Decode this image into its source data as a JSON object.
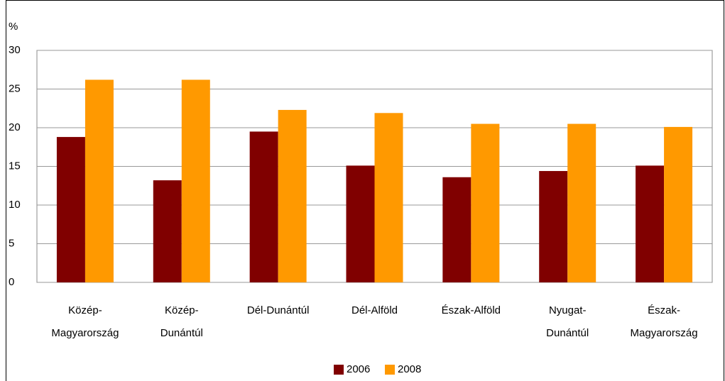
{
  "chart_data": {
    "type": "bar",
    "y_label": "%",
    "categories": [
      "Közép-Magyarország",
      "Közép-Dunántúl",
      "Dél-Dunántúl",
      "Dél-Alföld",
      "Észak-Alföld",
      "Nyugat-Dunántúl",
      "Észak-Magyarország"
    ],
    "series": [
      {
        "name": "2006",
        "color": "#800000",
        "values": [
          18.8,
          13.2,
          19.5,
          15.1,
          13.6,
          14.4,
          15.1
        ]
      },
      {
        "name": "2008",
        "color": "#ff9900",
        "values": [
          26.2,
          26.2,
          22.3,
          21.9,
          20.5,
          20.5,
          20.1
        ]
      }
    ],
    "ylim": [
      0,
      30
    ],
    "yticks": [
      0,
      5,
      10,
      15,
      20,
      25,
      30
    ],
    "grid": true,
    "legend": "bottom"
  }
}
